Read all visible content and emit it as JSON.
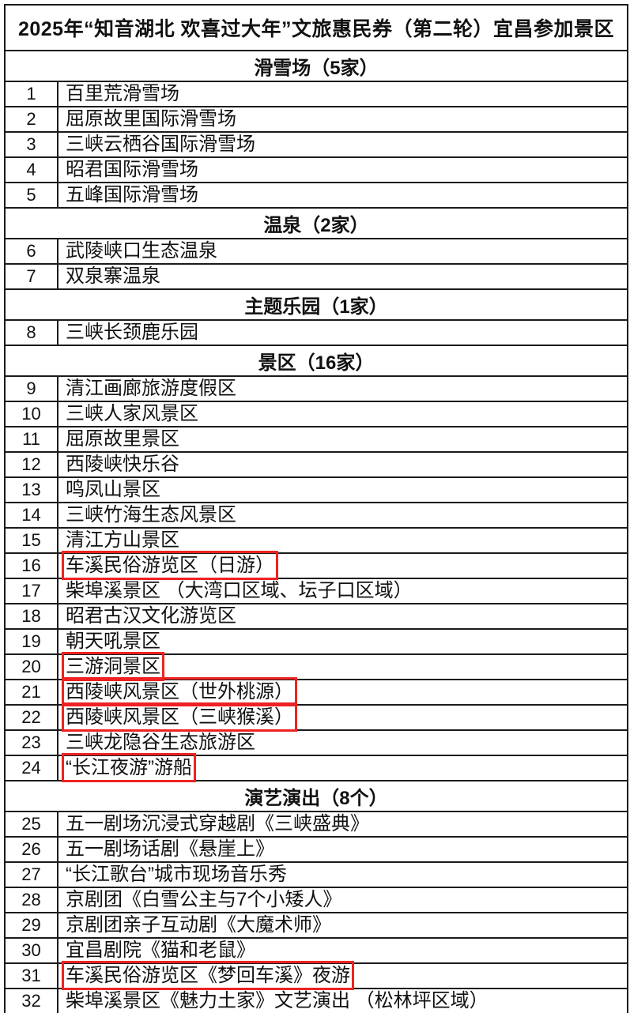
{
  "title": "2025年“知音湖北 欢喜过大年”文旅惠民券（第二轮）宜昌参加景区",
  "colors": {
    "highlight_box": "#ee2222",
    "table_border": "#1b1b1b",
    "background": "#ffffff",
    "text": "#111111"
  },
  "sections": [
    {
      "header": "滑雪场（5家）",
      "rows": [
        {
          "no": "1",
          "name": "百里荒滑雪场",
          "boxed": false
        },
        {
          "no": "2",
          "name": "屈原故里国际滑雪场",
          "boxed": false
        },
        {
          "no": "3",
          "name": "三峡云栖谷国际滑雪场",
          "boxed": false
        },
        {
          "no": "4",
          "name": "昭君国际滑雪场",
          "boxed": false
        },
        {
          "no": "5",
          "name": "五峰国际滑雪场",
          "boxed": false
        }
      ]
    },
    {
      "header": "温泉（2家）",
      "rows": [
        {
          "no": "6",
          "name": "武陵峡口生态温泉",
          "boxed": false
        },
        {
          "no": "7",
          "name": "双泉寨温泉",
          "boxed": false
        }
      ]
    },
    {
      "header": "主题乐园（1家）",
      "rows": [
        {
          "no": "8",
          "name": "三峡长颈鹿乐园",
          "boxed": false
        }
      ]
    },
    {
      "header": "景区（16家）",
      "rows": [
        {
          "no": "9",
          "name": "清江画廊旅游度假区",
          "boxed": false
        },
        {
          "no": "10",
          "name": "三峡人家风景区",
          "boxed": false
        },
        {
          "no": "11",
          "name": "屈原故里景区",
          "boxed": false
        },
        {
          "no": "12",
          "name": "西陵峡快乐谷",
          "boxed": false
        },
        {
          "no": "13",
          "name": "鸣凤山景区",
          "boxed": false
        },
        {
          "no": "14",
          "name": "三峡竹海生态风景区",
          "boxed": false
        },
        {
          "no": "15",
          "name": "清江方山景区",
          "boxed": false
        },
        {
          "no": "16",
          "name": "车溪民俗游览区（日游）",
          "boxed": true
        },
        {
          "no": "17",
          "name": "柴埠溪景区 （大湾口区域、坛子口区域）",
          "boxed": false
        },
        {
          "no": "18",
          "name": "昭君古汉文化游览区",
          "boxed": false
        },
        {
          "no": "19",
          "name": "朝天吼景区",
          "boxed": false
        },
        {
          "no": "20",
          "name": "三游洞景区",
          "boxed": true
        },
        {
          "no": "21",
          "name": "西陵峡风景区（世外桃源）",
          "boxed": true
        },
        {
          "no": "22",
          "name": "西陵峡风景区（三峡猴溪）",
          "boxed": true
        },
        {
          "no": "23",
          "name": "三峡龙隐谷生态旅游区",
          "boxed": false
        },
        {
          "no": "24",
          "name": "“长江夜游”游船",
          "boxed": true
        }
      ]
    },
    {
      "header": "演艺演出（8个）",
      "rows": [
        {
          "no": "25",
          "name": "五一剧场沉浸式穿越剧《三峡盛典》",
          "boxed": false
        },
        {
          "no": "26",
          "name": "五一剧场话剧《悬崖上》",
          "boxed": false
        },
        {
          "no": "27",
          "name": "“长江歌台”城市现场音乐秀",
          "boxed": false
        },
        {
          "no": "28",
          "name": "京剧团《白雪公主与7个小矮人》",
          "boxed": false
        },
        {
          "no": "29",
          "name": "京剧团亲子互动剧《大魔术师》",
          "boxed": false
        },
        {
          "no": "30",
          "name": "宜昌剧院《猫和老鼠》",
          "boxed": false
        },
        {
          "no": "31",
          "name": "车溪民俗游览区《梦回车溪》夜游",
          "boxed": true
        },
        {
          "no": "32",
          "name": "柴埠溪景区《魅力土家》文艺演出 （松林坪区域）",
          "boxed": false
        }
      ]
    }
  ]
}
